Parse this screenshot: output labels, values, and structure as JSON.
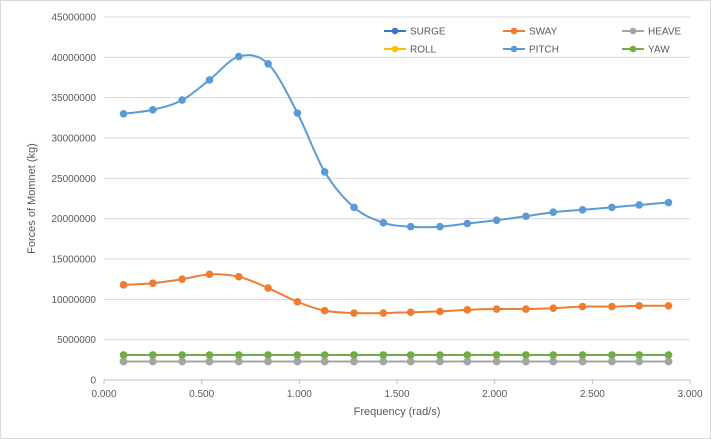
{
  "chart_data": {
    "type": "line",
    "title": "",
    "xlabel": "Frequency (rad/s)",
    "ylabel": "Forces of Momnet (kg)",
    "xlim": [
      0,
      3
    ],
    "ylim": [
      0,
      45000000
    ],
    "x_ticks": [
      "0.000",
      "0.500",
      "1.000",
      "1.500",
      "2.000",
      "2.500",
      "3.000"
    ],
    "y_ticks": [
      "0",
      "5000000",
      "10000000",
      "15000000",
      "20000000",
      "25000000",
      "30000000",
      "35000000",
      "40000000",
      "45000000"
    ],
    "grid": "horizontal",
    "legend_position": "top-right",
    "x": [
      0.1,
      0.25,
      0.4,
      0.54,
      0.69,
      0.84,
      0.99,
      1.13,
      1.28,
      1.43,
      1.57,
      1.72,
      1.86,
      2.01,
      2.16,
      2.3,
      2.45,
      2.6,
      2.74,
      2.89
    ],
    "series": [
      {
        "name": "SURGE",
        "color": "#4472c4",
        "values": [
          2300000,
          2300000,
          2300000,
          2300000,
          2300000,
          2300000,
          2300000,
          2300000,
          2300000,
          2300000,
          2300000,
          2300000,
          2300000,
          2300000,
          2300000,
          2300000,
          2300000,
          2300000,
          2300000,
          2300000
        ]
      },
      {
        "name": "SWAY",
        "color": "#ed7d31",
        "values": [
          11800000,
          12000000,
          12500000,
          13100000,
          12800000,
          11400000,
          9700000,
          8600000,
          8300000,
          8300000,
          8400000,
          8500000,
          8700000,
          8800000,
          8800000,
          8900000,
          9100000,
          9100000,
          9200000,
          9200000
        ]
      },
      {
        "name": "HEAVE",
        "color": "#a5a5a5",
        "values": [
          2300000,
          2300000,
          2300000,
          2300000,
          2300000,
          2300000,
          2300000,
          2300000,
          2300000,
          2300000,
          2300000,
          2300000,
          2300000,
          2300000,
          2300000,
          2300000,
          2300000,
          2300000,
          2300000,
          2300000
        ]
      },
      {
        "name": "ROLL",
        "color": "#ffc000",
        "values": [
          3100000,
          3100000,
          3100000,
          3100000,
          3100000,
          3100000,
          3100000,
          3100000,
          3100000,
          3100000,
          3100000,
          3100000,
          3100000,
          3100000,
          3100000,
          3100000,
          3100000,
          3100000,
          3100000,
          3100000
        ]
      },
      {
        "name": "PITCH",
        "color": "#5b9bd5",
        "values": [
          33000000,
          33500000,
          34700000,
          37200000,
          40100000,
          39200000,
          33100000,
          25800000,
          21400000,
          19500000,
          19000000,
          19000000,
          19400000,
          19800000,
          20300000,
          20800000,
          21100000,
          21400000,
          21700000,
          22000000
        ]
      },
      {
        "name": "YAW",
        "color": "#70ad47",
        "values": [
          3100000,
          3100000,
          3100000,
          3100000,
          3100000,
          3100000,
          3100000,
          3100000,
          3100000,
          3100000,
          3100000,
          3100000,
          3100000,
          3100000,
          3100000,
          3100000,
          3100000,
          3100000,
          3100000,
          3100000
        ]
      }
    ]
  }
}
